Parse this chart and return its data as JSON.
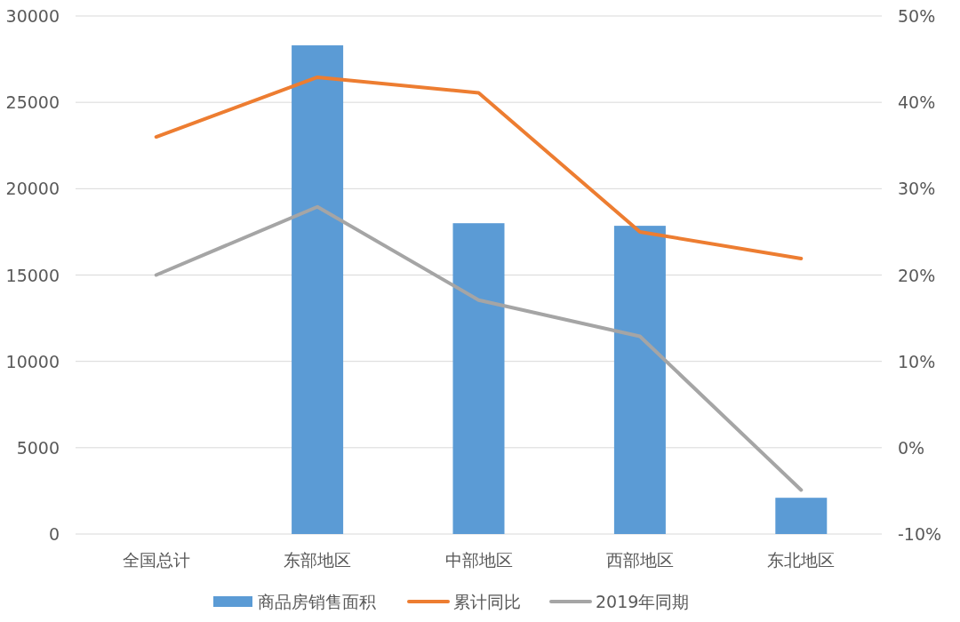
{
  "chart_data": {
    "type": "bar",
    "categories": [
      "全国总计",
      "东部地区",
      "中部地区",
      "西部地区",
      "东北地区"
    ],
    "series": [
      {
        "name": "商品房销售面积",
        "color": "#5b9bd5",
        "values": [
          null,
          28300,
          18000,
          17850,
          2100
        ]
      },
      {
        "name": "累计同比",
        "type": "line",
        "axis": "y2",
        "color": "#ed7d31",
        "values": [
          36.0,
          42.9,
          41.1,
          25.0,
          21.9
        ]
      },
      {
        "name": "2019年同期",
        "type": "line",
        "axis": "y2",
        "color": "#a5a5a5",
        "values": [
          20.0,
          27.9,
          17.1,
          12.9,
          -4.9
        ]
      }
    ],
    "ylim": [
      0,
      30000
    ],
    "yticks": [
      0,
      5000,
      10000,
      15000,
      20000,
      25000,
      30000
    ],
    "y2lim": [
      -10,
      50
    ],
    "y2ticks": [
      {
        "value": -10,
        "label": "-10%"
      },
      {
        "value": 0,
        "label": "0%"
      },
      {
        "value": 10,
        "label": "10%"
      },
      {
        "value": 20,
        "label": "20%"
      },
      {
        "value": 30,
        "label": "30%"
      },
      {
        "value": 40,
        "label": "40%"
      },
      {
        "value": 50,
        "label": "50%"
      }
    ],
    "grid": "y",
    "legend": "bottom",
    "line_style": "solid",
    "marker": "none"
  }
}
